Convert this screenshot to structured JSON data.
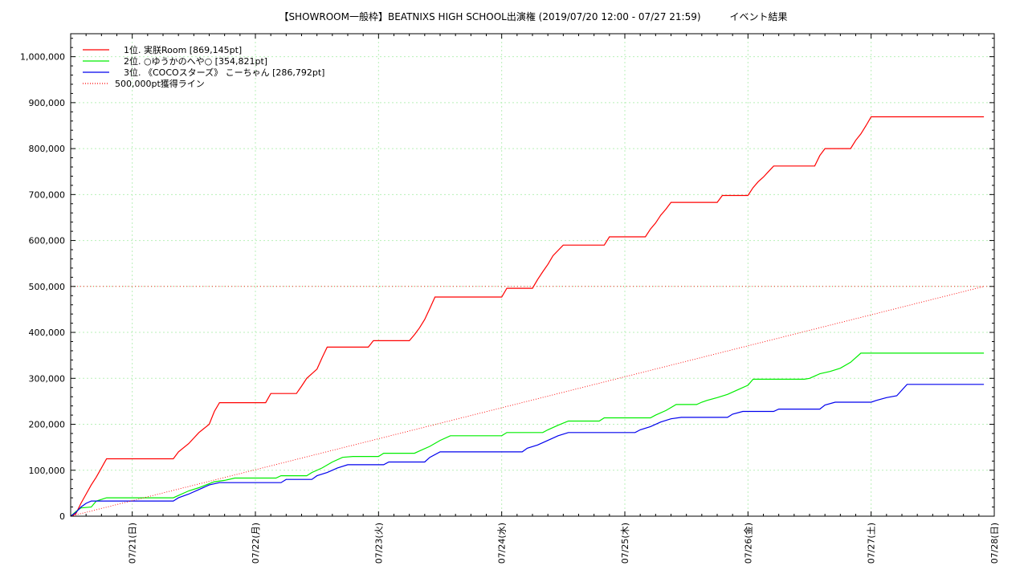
{
  "chart_data": {
    "type": "line",
    "title": "【SHOWROOM一般枠】BEATNIXS HIGH SCHOOL出演権 (2019/07/20 12:00 - 07/27 21:59)　　　イベント結果",
    "xlabel": "",
    "ylabel": "",
    "x_domain": [
      "2019/07/20 12:00",
      "2019/07/28 00:00"
    ],
    "ylim": [
      0,
      1050000
    ],
    "y_ticks": [
      0,
      100000,
      200000,
      300000,
      400000,
      500000,
      600000,
      700000,
      800000,
      900000,
      1000000
    ],
    "y_tick_labels": [
      "0",
      "100,000",
      "200,000",
      "300,000",
      "400,000",
      "500,000",
      "600,000",
      "700,000",
      "800,000",
      "900,000",
      "1,000,000"
    ],
    "x_tick_labels": [
      "07/21(日)",
      "07/22(月)",
      "07/23(火)",
      "07/24(水)",
      "07/25(木)",
      "07/26(金)",
      "07/27(土)",
      "07/28(日)"
    ],
    "grid": true,
    "legend_position": "top-left",
    "series": [
      {
        "name": "1位. 実朕Room [869,145pt]",
        "color": "#ff0000",
        "style": "solid",
        "points": [
          [
            "07/20 12:00",
            0
          ],
          [
            "07/20 13:00",
            5000
          ],
          [
            "07/20 14:00",
            28000
          ],
          [
            "07/20 15:00",
            48000
          ],
          [
            "07/20 16:00",
            68000
          ],
          [
            "07/20 17:00",
            85000
          ],
          [
            "07/20 18:00",
            105000
          ],
          [
            "07/20 19:00",
            125000
          ],
          [
            "07/21 08:00",
            125000
          ],
          [
            "07/21 09:00",
            140000
          ],
          [
            "07/21 11:00",
            158000
          ],
          [
            "07/21 13:00",
            182000
          ],
          [
            "07/21 15:00",
            200000
          ],
          [
            "07/21 16:00",
            228000
          ],
          [
            "07/21 17:00",
            247000
          ],
          [
            "07/22 02:00",
            247000
          ],
          [
            "07/22 03:00",
            267000
          ],
          [
            "07/22 08:00",
            267000
          ],
          [
            "07/22 09:00",
            283000
          ],
          [
            "07/22 10:00",
            300000
          ],
          [
            "07/22 12:00",
            320000
          ],
          [
            "07/22 13:00",
            345000
          ],
          [
            "07/22 14:00",
            368000
          ],
          [
            "07/22 22:00",
            368000
          ],
          [
            "07/22 23:00",
            382000
          ],
          [
            "07/23 06:00",
            382000
          ],
          [
            "07/23 07:00",
            395000
          ],
          [
            "07/23 08:00",
            410000
          ],
          [
            "07/23 09:00",
            428000
          ],
          [
            "07/23 10:00",
            452000
          ],
          [
            "07/23 11:00",
            477000
          ],
          [
            "07/24 00:00",
            477000
          ],
          [
            "07/24 01:00",
            496000
          ],
          [
            "07/24 06:00",
            496000
          ],
          [
            "07/24 07:00",
            515000
          ],
          [
            "07/24 08:00",
            532000
          ],
          [
            "07/24 09:00",
            548000
          ],
          [
            "07/24 10:00",
            567000
          ],
          [
            "07/24 12:00",
            590000
          ],
          [
            "07/24 20:00",
            590000
          ],
          [
            "07/24 21:00",
            608000
          ],
          [
            "07/25 04:00",
            608000
          ],
          [
            "07/25 05:00",
            625000
          ],
          [
            "07/25 06:00",
            638000
          ],
          [
            "07/25 07:00",
            655000
          ],
          [
            "07/25 08:00",
            668000
          ],
          [
            "07/25 09:00",
            683000
          ],
          [
            "07/25 18:00",
            683000
          ],
          [
            "07/25 19:00",
            698000
          ],
          [
            "07/26 00:00",
            698000
          ],
          [
            "07/26 01:00",
            715000
          ],
          [
            "07/26 02:00",
            728000
          ],
          [
            "07/26 03:00",
            738000
          ],
          [
            "07/26 04:00",
            750000
          ],
          [
            "07/26 05:00",
            762000
          ],
          [
            "07/26 13:00",
            762000
          ],
          [
            "07/26 14:00",
            785000
          ],
          [
            "07/26 15:00",
            800000
          ],
          [
            "07/26 20:00",
            800000
          ],
          [
            "07/26 21:00",
            818000
          ],
          [
            "07/26 22:00",
            832000
          ],
          [
            "07/26 23:00",
            850000
          ],
          [
            "07/27 00:00",
            869145
          ],
          [
            "07/27 21:59",
            869145
          ]
        ]
      },
      {
        "name": "2位. ○ゆうかのへや○ [354,821pt]",
        "color": "#00ee00",
        "style": "solid",
        "points": [
          [
            "07/20 12:00",
            0
          ],
          [
            "07/20 13:00",
            10000
          ],
          [
            "07/20 14:00",
            18000
          ],
          [
            "07/20 16:00",
            20000
          ],
          [
            "07/20 17:00",
            33000
          ],
          [
            "07/20 19:00",
            40000
          ],
          [
            "07/21 08:00",
            40000
          ],
          [
            "07/21 09:00",
            45000
          ],
          [
            "07/21 11:00",
            55000
          ],
          [
            "07/21 13:00",
            62000
          ],
          [
            "07/21 16:00",
            75000
          ],
          [
            "07/21 18:00",
            78000
          ],
          [
            "07/21 20:00",
            83000
          ],
          [
            "07/22 04:00",
            83000
          ],
          [
            "07/22 05:00",
            88000
          ],
          [
            "07/22 10:00",
            88000
          ],
          [
            "07/22 11:00",
            95000
          ],
          [
            "07/22 13:00",
            105000
          ],
          [
            "07/22 15:00",
            118000
          ],
          [
            "07/22 17:00",
            128000
          ],
          [
            "07/22 19:00",
            130000
          ],
          [
            "07/23 00:00",
            130000
          ],
          [
            "07/23 01:00",
            137000
          ],
          [
            "07/23 07:00",
            137000
          ],
          [
            "07/23 08:00",
            142000
          ],
          [
            "07/23 10:00",
            152000
          ],
          [
            "07/23 12:00",
            165000
          ],
          [
            "07/23 14:00",
            175000
          ],
          [
            "07/24 00:00",
            175000
          ],
          [
            "07/24 01:00",
            182000
          ],
          [
            "07/24 08:00",
            182000
          ],
          [
            "07/24 09:00",
            188000
          ],
          [
            "07/24 11:00",
            198000
          ],
          [
            "07/24 13:00",
            207000
          ],
          [
            "07/24 19:00",
            207000
          ],
          [
            "07/24 20:00",
            214000
          ],
          [
            "07/25 05:00",
            214000
          ],
          [
            "07/25 06:00",
            220000
          ],
          [
            "07/25 08:00",
            230000
          ],
          [
            "07/25 10:00",
            243000
          ],
          [
            "07/25 14:00",
            243000
          ],
          [
            "07/25 15:00",
            248000
          ],
          [
            "07/25 16:00",
            252000
          ],
          [
            "07/25 18:00",
            258000
          ],
          [
            "07/25 20:00",
            265000
          ],
          [
            "07/25 22:00",
            275000
          ],
          [
            "07/26 00:00",
            285000
          ],
          [
            "07/26 01:00",
            298000
          ],
          [
            "07/26 11:00",
            298000
          ],
          [
            "07/26 12:00",
            300000
          ],
          [
            "07/26 14:00",
            310000
          ],
          [
            "07/26 16:00",
            315000
          ],
          [
            "07/26 18:00",
            322000
          ],
          [
            "07/26 20:00",
            335000
          ],
          [
            "07/26 22:00",
            354821
          ],
          [
            "07/27 21:59",
            354821
          ]
        ]
      },
      {
        "name": "3位. 《COCOスターズ》 こーちゃん [286,792pt]",
        "color": "#0000ee",
        "style": "solid",
        "points": [
          [
            "07/20 12:00",
            0
          ],
          [
            "07/20 13:00",
            8000
          ],
          [
            "07/20 14:00",
            20000
          ],
          [
            "07/20 15:00",
            28000
          ],
          [
            "07/20 16:00",
            33000
          ],
          [
            "07/21 08:00",
            33000
          ],
          [
            "07/21 09:00",
            40000
          ],
          [
            "07/21 11:00",
            48000
          ],
          [
            "07/21 13:00",
            58000
          ],
          [
            "07/21 15:00",
            68000
          ],
          [
            "07/21 17:00",
            73000
          ],
          [
            "07/22 05:00",
            73000
          ],
          [
            "07/22 06:00",
            80000
          ],
          [
            "07/22 11:00",
            80000
          ],
          [
            "07/22 12:00",
            88000
          ],
          [
            "07/22 14:00",
            95000
          ],
          [
            "07/22 16:00",
            105000
          ],
          [
            "07/22 18:00",
            112000
          ],
          [
            "07/23 01:00",
            112000
          ],
          [
            "07/23 02:00",
            118000
          ],
          [
            "07/23 09:00",
            118000
          ],
          [
            "07/23 10:00",
            128000
          ],
          [
            "07/23 12:00",
            140000
          ],
          [
            "07/24 04:00",
            140000
          ],
          [
            "07/24 05:00",
            148000
          ],
          [
            "07/24 07:00",
            155000
          ],
          [
            "07/24 09:00",
            165000
          ],
          [
            "07/24 11:00",
            175000
          ],
          [
            "07/24 13:00",
            182000
          ],
          [
            "07/25 02:00",
            182000
          ],
          [
            "07/25 03:00",
            188000
          ],
          [
            "07/25 05:00",
            195000
          ],
          [
            "07/25 07:00",
            205000
          ],
          [
            "07/25 09:00",
            212000
          ],
          [
            "07/25 11:00",
            215000
          ],
          [
            "07/25 20:00",
            215000
          ],
          [
            "07/25 21:00",
            222000
          ],
          [
            "07/25 23:00",
            228000
          ],
          [
            "07/26 05:00",
            228000
          ],
          [
            "07/26 06:00",
            233000
          ],
          [
            "07/26 14:00",
            233000
          ],
          [
            "07/26 15:00",
            242000
          ],
          [
            "07/26 17:00",
            248000
          ],
          [
            "07/27 00:00",
            248000
          ],
          [
            "07/27 01:00",
            252000
          ],
          [
            "07/27 03:00",
            258000
          ],
          [
            "07/27 05:00",
            262000
          ],
          [
            "07/27 07:00",
            286792
          ],
          [
            "07/27 21:59",
            286792
          ]
        ]
      },
      {
        "name": "500,000pt獲得ライン",
        "color": "#ff0000",
        "style": "dotted",
        "points": [
          [
            "07/20 12:00",
            0
          ],
          [
            "07/27 22:00",
            500000
          ]
        ]
      }
    ],
    "horizontal_reference": {
      "y": 500000,
      "color": "#ff0000",
      "style": "dotted"
    }
  }
}
